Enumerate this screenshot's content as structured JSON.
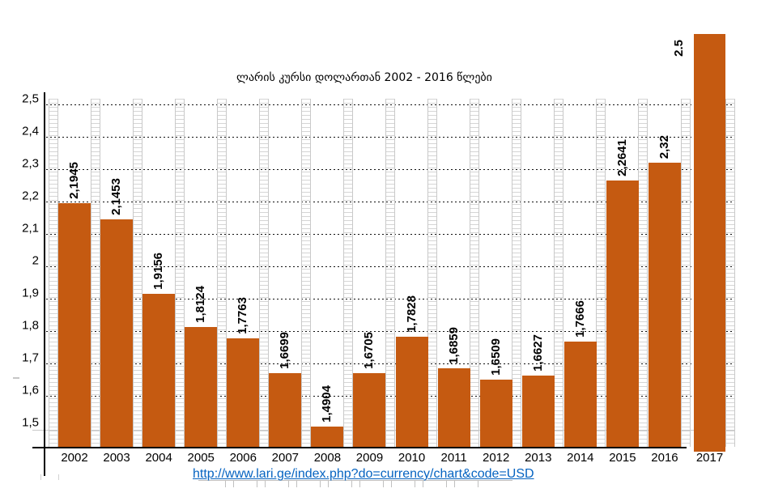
{
  "title": "ლარის კურსი დოლართან  2002 -  2016 წლები",
  "source_link": {
    "text": "http://www.lari.ge/index.php?do=currency/chart&code=USD"
  },
  "colors": {
    "bar": "#C55A11",
    "link": "#0563C1",
    "gridline": "#111111",
    "pattern_column": "#D5D5D5",
    "axis": "#000000"
  },
  "chart_data": {
    "type": "bar",
    "title": "ლარის კურსი დოლართან  2002 -  2016 წლები",
    "categories": [
      "2002",
      "2003",
      "2004",
      "2005",
      "2006",
      "2007",
      "2008",
      "2009",
      "2010",
      "2011",
      "2012",
      "2013",
      "2014",
      "2015",
      "2016",
      "2017"
    ],
    "values": [
      2.1945,
      2.1453,
      1.9156,
      1.8124,
      1.7763,
      1.6699,
      1.4904,
      1.6705,
      1.7828,
      1.6859,
      1.6509,
      1.6627,
      1.7666,
      2.2641,
      2.32,
      2.5
    ],
    "value_labels": [
      "2,1945",
      "2,1453",
      "1,9156",
      "1,8124",
      "1,7763",
      "1,6699",
      "1,4904",
      "1,6705",
      "1,7828",
      "1,6859",
      "1,6509",
      "1,6627",
      "1,7666",
      "2,2641",
      "2,32",
      "2.5"
    ],
    "y_tick_labels": [
      "2,5",
      "2,4",
      "2,3",
      "2,2",
      "2,1",
      "2",
      "1,9",
      "1,8",
      "1,7",
      "1,6",
      "1,5"
    ],
    "y_tick_values": [
      2.5,
      2.4,
      2.3,
      2.2,
      2.1,
      2.0,
      1.9,
      1.8,
      1.7,
      1.6,
      1.5
    ],
    "xlabel": "",
    "ylabel": "",
    "ylim": [
      1.44,
      2.5
    ],
    "grid": "horizontal-dotted",
    "legend": "none",
    "bar_color": "#C55A11",
    "note": "2017 bar drawn beyond plot top; its label uses a period (2.5) unlike comma labels"
  }
}
